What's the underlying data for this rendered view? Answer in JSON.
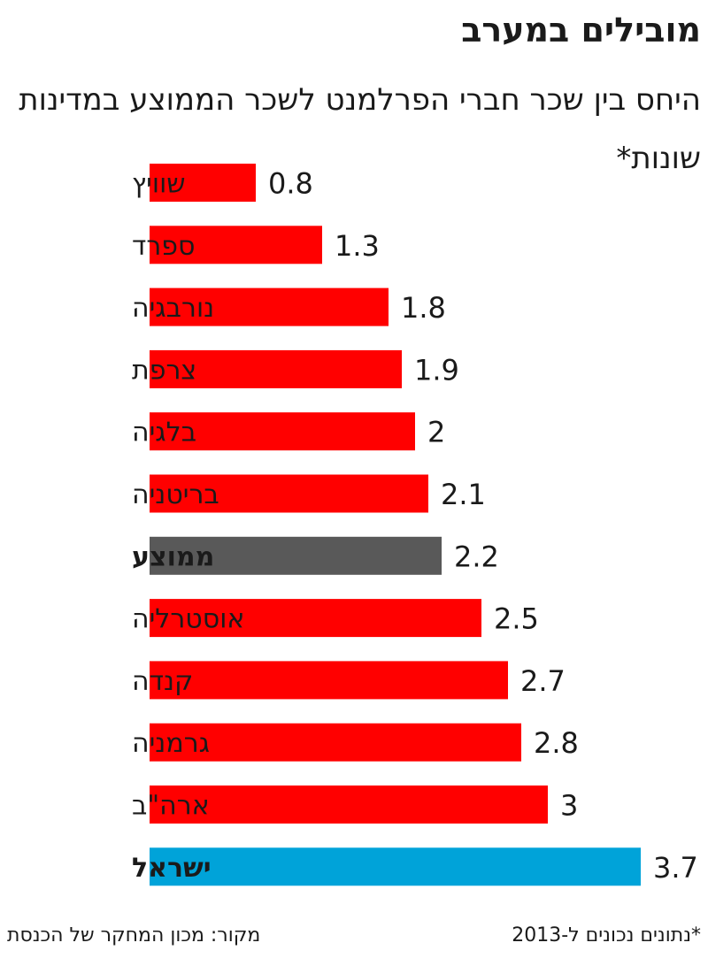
{
  "title": "מובילים במערב",
  "subtitle": "היחס בין שכר חברי הפרלמנט לשכר הממוצע במדינות שונות*",
  "footnote": "*נתונים נכונים ל-2013",
  "source": "מקור: מכון המחקר של הכנסת",
  "colors": {
    "default": "#ff0000",
    "average": "#595959",
    "israel": "#00a3d9"
  },
  "chart_data": {
    "type": "bar",
    "orientation": "horizontal",
    "categories": [
      "שוויץ",
      "ספרד",
      "נורבגיה",
      "צרפת",
      "בלגיה",
      "בריטניה",
      "ממוצע",
      "אוסטרליה",
      "קנדה",
      "גרמניה",
      "ארה\"ב",
      "ישראל"
    ],
    "values": [
      0.8,
      1.3,
      1.8,
      1.9,
      2,
      2.1,
      2.2,
      2.5,
      2.7,
      2.8,
      3,
      3.7
    ],
    "value_labels": [
      "0.8",
      "1.3",
      "1.8",
      "1.9",
      "2",
      "2.1",
      "2.2",
      "2.5",
      "2.7",
      "2.8",
      "3",
      "3.7"
    ],
    "highlight": {
      "ממוצע": "average",
      "ישראל": "israel"
    },
    "xlim": [
      0,
      3.7
    ],
    "grid": false,
    "legend": "none"
  }
}
